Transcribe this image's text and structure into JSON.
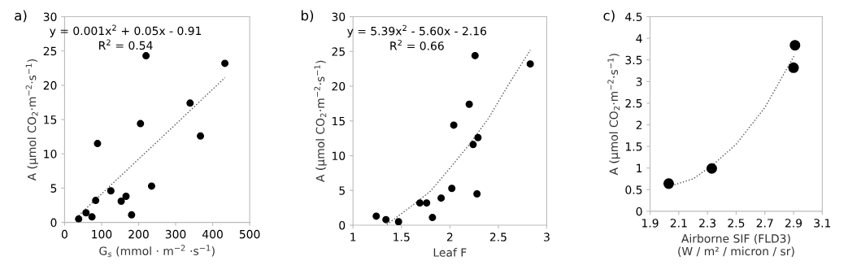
{
  "chart_data": [
    {
      "type": "scatter",
      "title": "a)",
      "xlabel": "G$_{s}$ (mmol · m$^{−2}$ ·s$^{−1}$)",
      "ylabel": "A (µmol CO$_{2}$·m$^{−2}$·s$^{−1}$)",
      "xlim": [
        0,
        500
      ],
      "ylim": [
        0,
        30
      ],
      "xticks": [
        0,
        100,
        200,
        300,
        400,
        500
      ],
      "yticks": [
        0,
        5,
        10,
        15,
        20,
        25,
        30
      ],
      "grid": false,
      "legend": false,
      "marker": "circle",
      "annotations": [
        "y = 0.001x$^{2}$ + 0.05x - 0.91",
        "R$^{2}$ = 0.54"
      ],
      "series": [
        {
          "color": "#000000",
          "x": [
            38,
            58,
            74,
            84,
            89,
            125,
            153,
            166,
            181,
            205,
            220,
            235,
            339,
            367,
            433
          ],
          "values": [
            0.5,
            1.4,
            0.8,
            3.2,
            11.5,
            4.6,
            3.1,
            3.8,
            1.1,
            14.4,
            24.3,
            5.3,
            17.4,
            12.6,
            23.2
          ]
        },
        {
          "type": "line",
          "color": "#555555",
          "line_style": "dotted",
          "marker": "none",
          "x": [
            38,
            150,
            300,
            433
          ],
          "values": [
            1.0,
            6.7,
            14.3,
            21.1
          ]
        }
      ]
    },
    {
      "type": "scatter",
      "title": "b)",
      "xlabel": "Leaf F",
      "ylabel": "A (µmol CO$_{2}$·m$^{−2}$·s$^{−1}$)",
      "xlim": [
        1,
        3
      ],
      "ylim": [
        0,
        30
      ],
      "xticks": [
        1,
        1.5,
        2,
        2.5,
        3
      ],
      "yticks": [
        0,
        5,
        10,
        15,
        20,
        25,
        30
      ],
      "grid": false,
      "legend": false,
      "marker": "circle",
      "annotations": [
        "y = 5.39x$^{2}$ - 5.60x - 2.16",
        "R$^{2}$ = 0.66"
      ],
      "series": [
        {
          "color": "#000000",
          "x": [
            1.24,
            1.34,
            1.47,
            1.69,
            1.76,
            1.82,
            1.91,
            2.02,
            2.04,
            2.2,
            2.26,
            2.24,
            2.29,
            2.28,
            2.83
          ],
          "values": [
            1.3,
            0.8,
            0.5,
            3.2,
            3.2,
            1.1,
            3.9,
            5.3,
            14.4,
            17.4,
            24.4,
            11.6,
            12.6,
            4.5,
            23.2
          ]
        },
        {
          "type": "line",
          "color": "#555555",
          "line_style": "dotted",
          "marker": "none",
          "x": [
            1.35,
            1.6,
            1.8,
            2.0,
            2.2,
            2.4,
            2.6,
            2.83
          ],
          "values": [
            0.1,
            2.7,
            4.9,
            8.2,
            11.6,
            15.4,
            20.1,
            25.2
          ]
        }
      ]
    },
    {
      "type": "scatter",
      "title": "c)",
      "xlabel": "Airborne SIF (FLD3)\n(W / m² / micron / sr)",
      "ylabel": "A (µmol CO$_{2}$·m$^{−2}$·s$^{−1}$)",
      "xlim": [
        1.9,
        3.1
      ],
      "ylim": [
        0,
        4.5
      ],
      "xticks": [
        1.9,
        2.1,
        2.3,
        2.5,
        2.7,
        2.9,
        3.1
      ],
      "yticks": [
        0,
        0.5,
        1,
        1.5,
        2,
        2.5,
        3,
        3.5,
        4,
        4.5
      ],
      "grid": false,
      "legend": false,
      "marker": "circle",
      "series": [
        {
          "color": "#000000",
          "x": [
            2.03,
            2.33,
            2.9,
            2.91
          ],
          "values": [
            0.64,
            0.99,
            3.32,
            3.84
          ]
        },
        {
          "type": "line",
          "color": "#555555",
          "line_style": "dotted",
          "marker": "none",
          "x": [
            2.03,
            2.2,
            2.33,
            2.5,
            2.7,
            2.91
          ],
          "values": [
            0.57,
            0.75,
            1.05,
            1.55,
            2.4,
            3.63
          ]
        }
      ]
    }
  ]
}
